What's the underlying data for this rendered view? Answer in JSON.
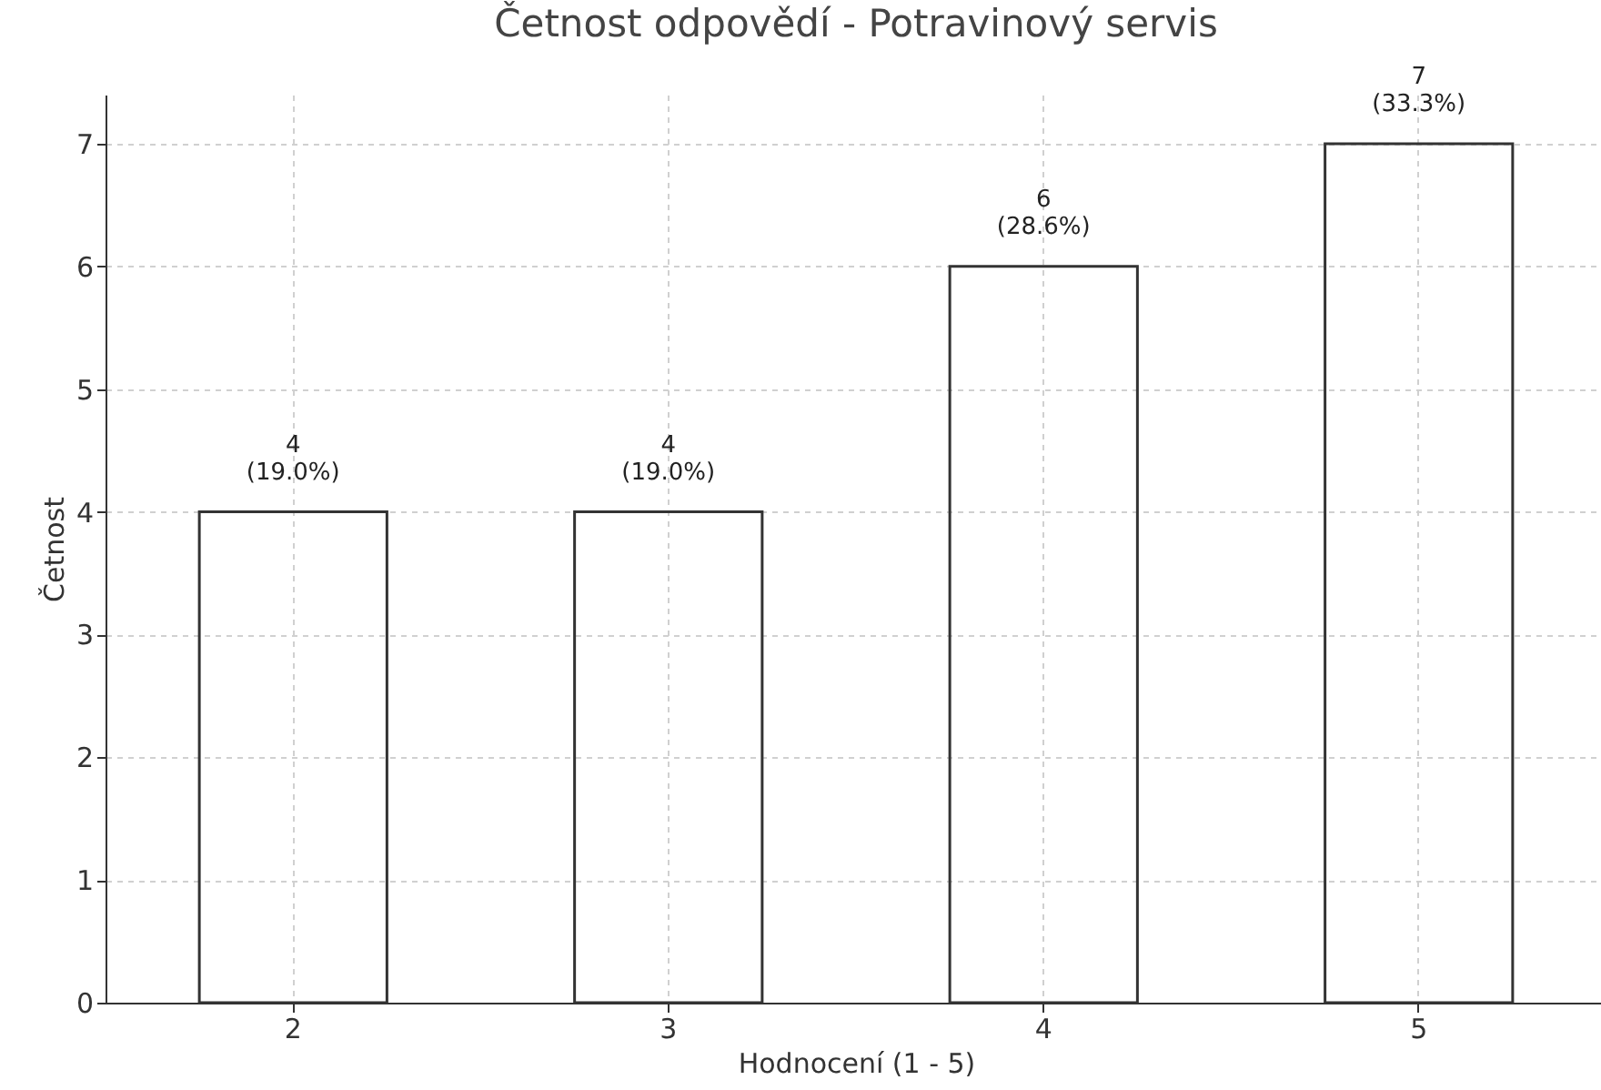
{
  "chart_data": {
    "type": "bar",
    "title": "Četnost odpovědí - Potravinový servis",
    "xlabel": "Hodnocení (1 - 5)",
    "ylabel": "Četnost",
    "categories": [
      "2",
      "3",
      "4",
      "5"
    ],
    "values": [
      4,
      4,
      6,
      7
    ],
    "value_labels": [
      "4\n(19.0%)",
      "4\n(19.0%)",
      "6\n(28.6%)",
      "7\n(33.3%)"
    ],
    "color": "#333333",
    "ylim": [
      0,
      7.4
    ],
    "yticks": [
      0,
      1,
      2,
      3,
      4,
      5,
      6,
      7
    ],
    "grid": true
  }
}
